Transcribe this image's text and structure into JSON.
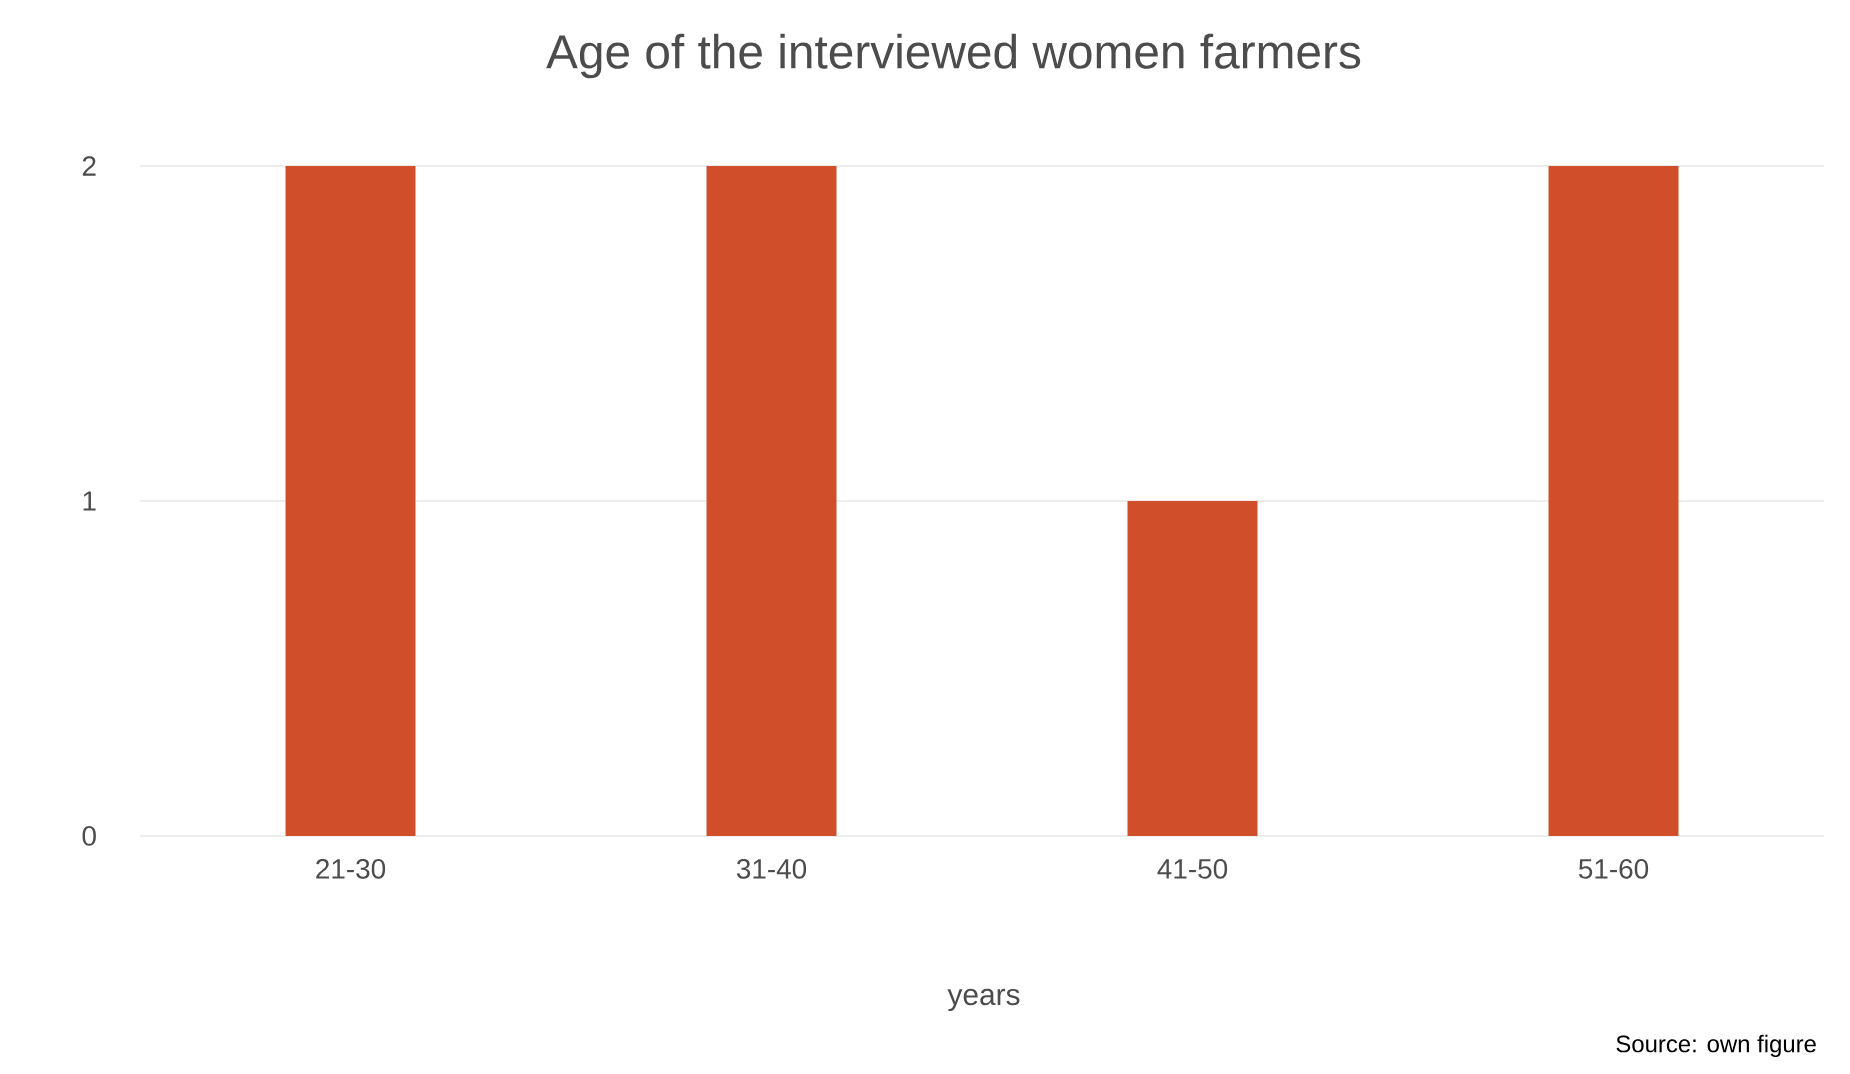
{
  "chart_data": {
    "type": "bar",
    "title": "Age of the interviewed women farmers",
    "xlabel": "years",
    "categories": [
      "21-30",
      "31-40",
      "41-50",
      "51-60"
    ],
    "values": [
      2,
      2,
      1,
      2
    ],
    "color": "#d04f2a",
    "ylim": [
      0,
      2
    ],
    "yticks": [
      0,
      1,
      2
    ],
    "grid": "y",
    "annotations": [
      "Source:  own figure"
    ]
  }
}
